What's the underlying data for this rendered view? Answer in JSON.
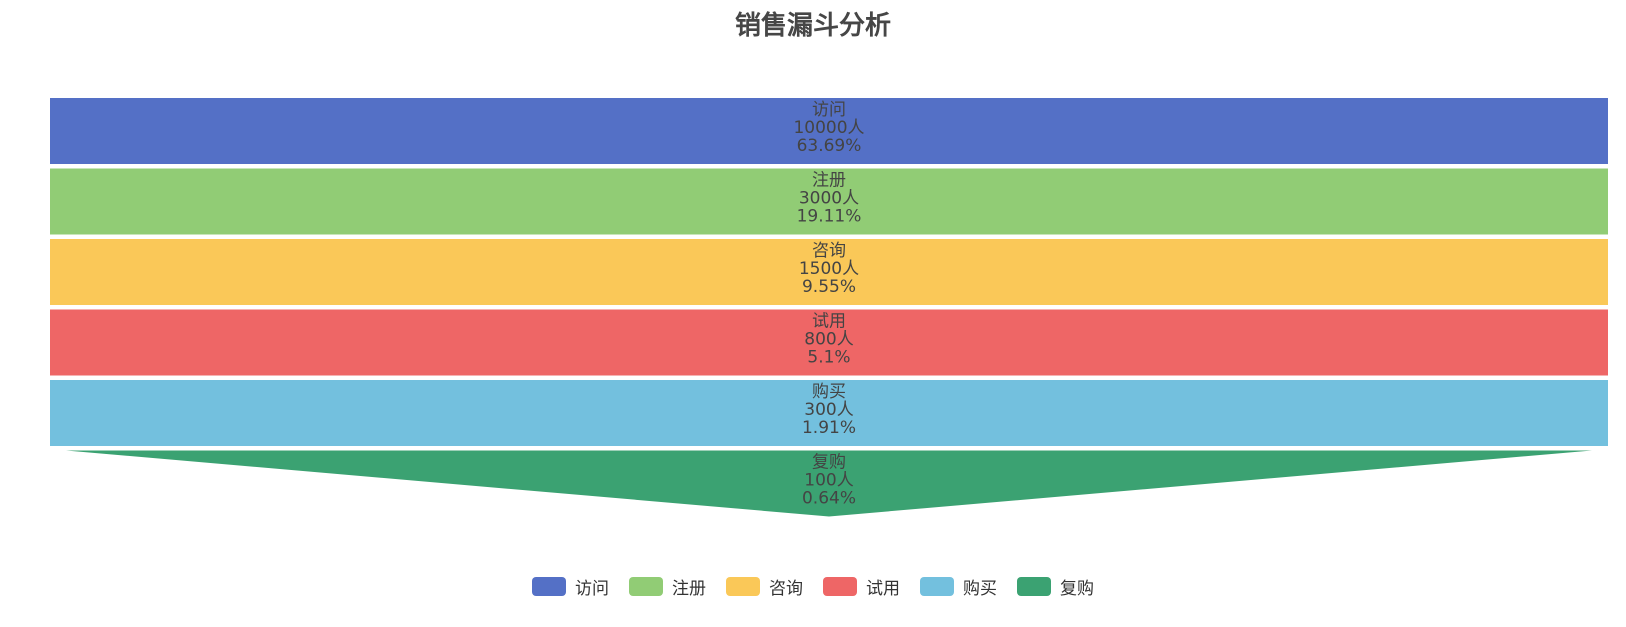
{
  "chart_data": {
    "type": "funnel",
    "title": "销售漏斗分析",
    "unit": "人",
    "stages": [
      {
        "name": "访问",
        "value": 10000,
        "percent": "63.69%",
        "color": "#5470c6"
      },
      {
        "name": "注册",
        "value": 3000,
        "percent": "19.11%",
        "color": "#91cc75"
      },
      {
        "name": "咨询",
        "value": 1500,
        "percent": "9.55%",
        "color": "#fac858"
      },
      {
        "name": "试用",
        "value": 800,
        "percent": "5.1%",
        "color": "#ee6666"
      },
      {
        "name": "购买",
        "value": 300,
        "percent": "1.91%",
        "color": "#73c0de"
      },
      {
        "name": "复购",
        "value": 100,
        "percent": "0.64%",
        "color": "#3ba272"
      }
    ],
    "legend": {
      "position": "bottom-center",
      "items": [
        "访问",
        "注册",
        "咨询",
        "试用",
        "购买",
        "复购"
      ]
    }
  }
}
